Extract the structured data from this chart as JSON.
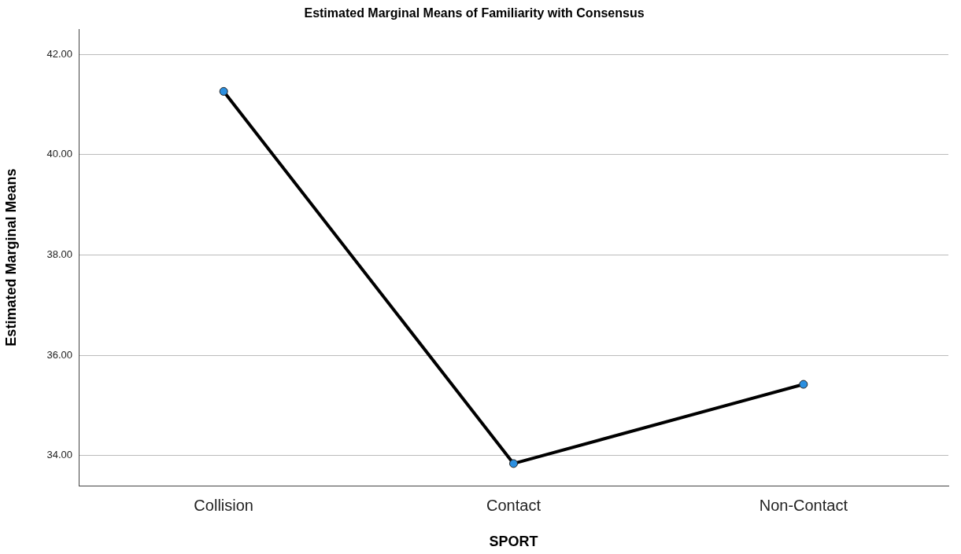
{
  "chart_data": {
    "type": "line",
    "title": "Estimated Marginal Means of Familiarity with Consensus",
    "xlabel": "SPORT",
    "ylabel": "Estimated Marginal Means",
    "categories": [
      "Collision",
      "Contact",
      "Non-Contact"
    ],
    "series": [
      {
        "color": "#000000",
        "colors": [
          "#2b8fe0",
          "#2b8fe0",
          "#2b8fe0"
        ],
        "values": [
          41.26,
          33.84,
          35.42
        ]
      }
    ],
    "ylim": [
      33.4,
      42.5
    ],
    "yticks": [
      {
        "value": 34,
        "label": "34.00"
      },
      {
        "value": 36,
        "label": "36.00"
      },
      {
        "value": 38,
        "label": "38.00"
      },
      {
        "value": 40,
        "label": "40.00"
      },
      {
        "value": 42,
        "label": "42.00"
      }
    ],
    "grid": "y",
    "legend": false,
    "marker": "circle",
    "line_style": "solid"
  }
}
